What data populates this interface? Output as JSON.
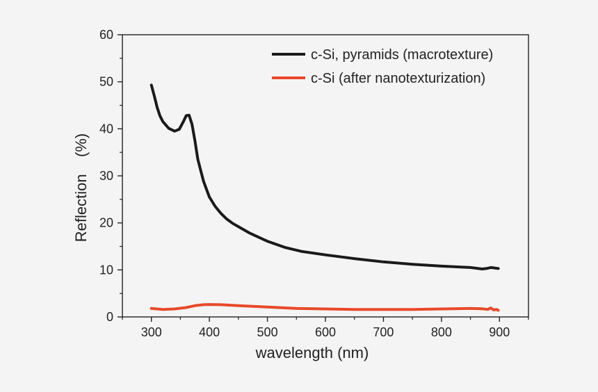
{
  "chart_data": {
    "type": "line",
    "title": "",
    "xlabel": "wavelength (nm)",
    "ylabel": "Reflection    (%)",
    "xlim": [
      250,
      950
    ],
    "ylim": [
      0,
      60
    ],
    "x_ticks": [
      300,
      400,
      500,
      600,
      700,
      800,
      900
    ],
    "y_ticks": [
      0,
      10,
      20,
      30,
      40,
      50,
      60
    ],
    "grid": false,
    "legend_position": "top-right",
    "series": [
      {
        "name": "c-Si, pyramids (macrotexture)",
        "color": "#1a1a1a",
        "points": [
          [
            300,
            49.3
          ],
          [
            305,
            47.0
          ],
          [
            310,
            44.5
          ],
          [
            315,
            42.7
          ],
          [
            320,
            41.5
          ],
          [
            330,
            40.1
          ],
          [
            340,
            39.5
          ],
          [
            348,
            39.9
          ],
          [
            355,
            41.5
          ],
          [
            360,
            42.8
          ],
          [
            365,
            42.9
          ],
          [
            370,
            41.0
          ],
          [
            375,
            37.5
          ],
          [
            380,
            33.5
          ],
          [
            390,
            28.8
          ],
          [
            400,
            25.5
          ],
          [
            410,
            23.5
          ],
          [
            420,
            22.0
          ],
          [
            430,
            20.8
          ],
          [
            440,
            19.9
          ],
          [
            450,
            19.2
          ],
          [
            470,
            17.8
          ],
          [
            500,
            16.1
          ],
          [
            530,
            14.8
          ],
          [
            560,
            13.9
          ],
          [
            600,
            13.2
          ],
          [
            650,
            12.4
          ],
          [
            700,
            11.7
          ],
          [
            750,
            11.2
          ],
          [
            800,
            10.8
          ],
          [
            850,
            10.5
          ],
          [
            870,
            10.2
          ],
          [
            878,
            10.3
          ],
          [
            885,
            10.5
          ],
          [
            892,
            10.4
          ],
          [
            898,
            10.3
          ]
        ]
      },
      {
        "name": "c-Si (after nanotexturization)",
        "color": "#e8492a",
        "points": [
          [
            300,
            1.8
          ],
          [
            320,
            1.6
          ],
          [
            340,
            1.7
          ],
          [
            360,
            2.0
          ],
          [
            375,
            2.4
          ],
          [
            390,
            2.6
          ],
          [
            400,
            2.65
          ],
          [
            420,
            2.6
          ],
          [
            450,
            2.4
          ],
          [
            500,
            2.1
          ],
          [
            550,
            1.8
          ],
          [
            600,
            1.7
          ],
          [
            650,
            1.6
          ],
          [
            700,
            1.6
          ],
          [
            750,
            1.6
          ],
          [
            800,
            1.7
          ],
          [
            850,
            1.8
          ],
          [
            870,
            1.75
          ],
          [
            880,
            1.6
          ],
          [
            885,
            1.9
          ],
          [
            890,
            1.5
          ],
          [
            895,
            1.6
          ],
          [
            898,
            1.4
          ]
        ]
      }
    ]
  }
}
